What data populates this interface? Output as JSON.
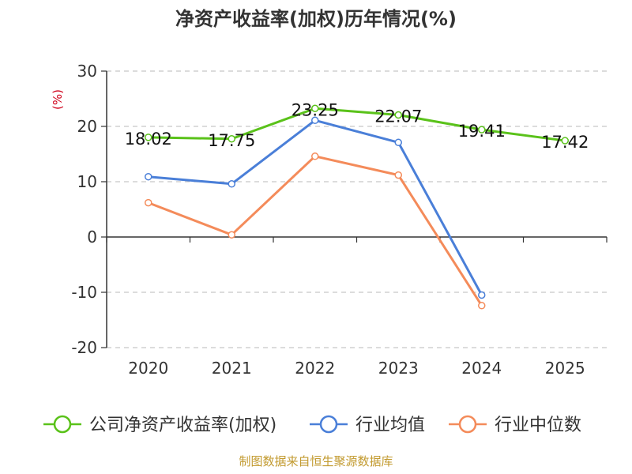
{
  "chart_data": {
    "type": "line",
    "title": "净资产收益率(加权)历年情况(%)",
    "ylabel": "(%)",
    "xlabel": "",
    "ylim": [
      -20,
      30
    ],
    "yticks": [
      -20,
      -10,
      0,
      10,
      20,
      30
    ],
    "categories": [
      "2020",
      "2021",
      "2022",
      "2023",
      "2024",
      "2025"
    ],
    "grid": true,
    "legend_position": "bottom",
    "series": [
      {
        "name": "公司净资产收益率(加权)",
        "color": "#5ac21a",
        "values": [
          18.02,
          17.75,
          23.25,
          22.07,
          19.41,
          17.42
        ],
        "labels": [
          "18.02",
          "17.75",
          "23.25",
          "22.07",
          "19.41",
          "17.42"
        ]
      },
      {
        "name": "行业均值",
        "color": "#4a7fd8",
        "values": [
          10.9,
          9.6,
          21.1,
          17.1,
          -10.5,
          null
        ]
      },
      {
        "name": "行业中位数",
        "color": "#f48b5a",
        "values": [
          6.2,
          0.4,
          14.6,
          11.2,
          -12.4,
          null
        ]
      }
    ]
  },
  "footer": "制图数据来自恒生聚源数据库"
}
